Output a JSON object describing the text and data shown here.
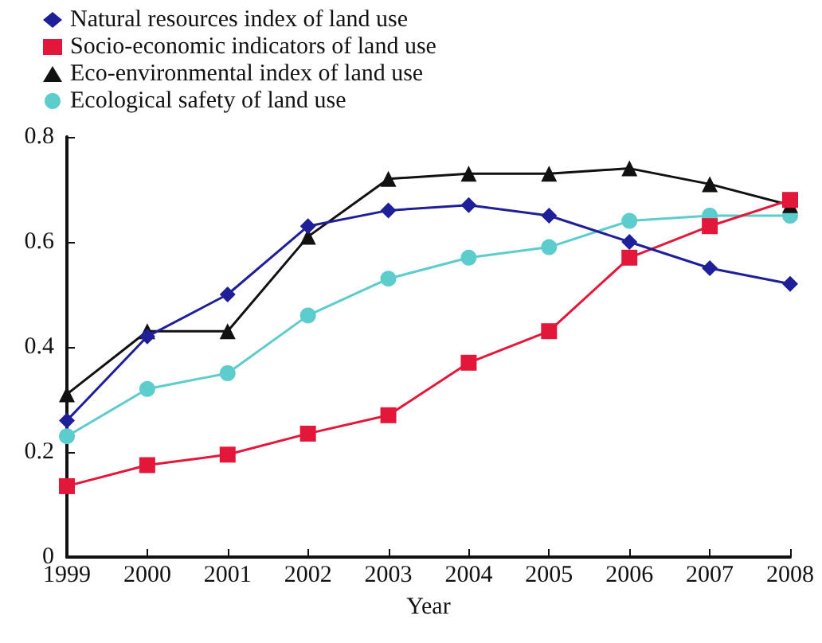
{
  "chart_data": {
    "type": "line",
    "xlabel": "Year",
    "categories": [
      "1999",
      "2000",
      "2001",
      "2002",
      "2003",
      "2004",
      "2005",
      "2006",
      "2007",
      "2008"
    ],
    "series": [
      {
        "name": "Natural resources index of land use",
        "color": "#1f1f99",
        "marker": "diamond",
        "values": [
          0.26,
          0.42,
          0.5,
          0.63,
          0.66,
          0.67,
          0.65,
          0.6,
          0.55,
          0.52
        ]
      },
      {
        "name": "Socio-economic indicators of land use",
        "color": "#e3173a",
        "marker": "square",
        "values": [
          0.135,
          0.175,
          0.195,
          0.235,
          0.27,
          0.37,
          0.43,
          0.57,
          0.63,
          0.68
        ]
      },
      {
        "name": "Eco-environmental index of land use",
        "color": "#111111",
        "marker": "triangle",
        "values": [
          0.31,
          0.43,
          0.43,
          0.61,
          0.72,
          0.73,
          0.73,
          0.74,
          0.71,
          0.67
        ]
      },
      {
        "name": "Ecological safety of land use",
        "color": "#5ccccc",
        "marker": "circle",
        "values": [
          0.23,
          0.32,
          0.35,
          0.46,
          0.53,
          0.57,
          0.59,
          0.64,
          0.65,
          0.65
        ]
      }
    ],
    "ylim": [
      0,
      0.8
    ],
    "yticks": [
      0,
      0.2,
      0.4,
      0.6,
      0.8
    ],
    "grid": false,
    "legend": "top left",
    "line_style": "solid"
  }
}
